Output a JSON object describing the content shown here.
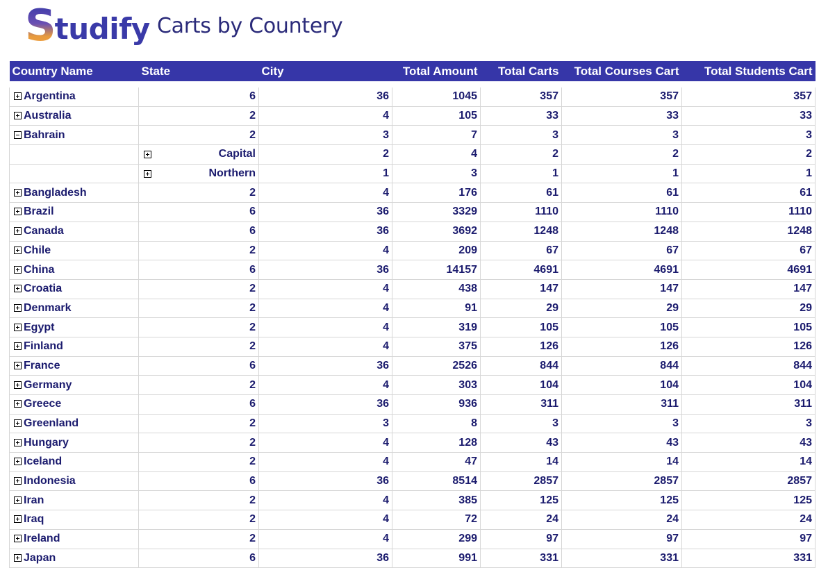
{
  "header": {
    "logo_initial": "S",
    "logo_rest": "tudify",
    "title": "Carts by Countery"
  },
  "columns": [
    "Country Name",
    "State",
    "City",
    "Total Amount",
    "Total Carts",
    "Total Courses Cart",
    "Total Students Cart"
  ],
  "rows": [
    {
      "type": "country",
      "expanded": false,
      "name": "Argentina",
      "state": "6",
      "city": "36",
      "amount": "1045",
      "carts": "357",
      "courses": "357",
      "students": "357"
    },
    {
      "type": "country",
      "expanded": false,
      "name": "Australia",
      "state": "2",
      "city": "4",
      "amount": "105",
      "carts": "33",
      "courses": "33",
      "students": "33"
    },
    {
      "type": "country",
      "expanded": true,
      "name": "Bahrain",
      "state": "2",
      "city": "3",
      "amount": "7",
      "carts": "3",
      "courses": "3",
      "students": "3"
    },
    {
      "type": "state",
      "expanded": false,
      "name": "",
      "state": "Capital",
      "city": "2",
      "amount": "4",
      "carts": "2",
      "courses": "2",
      "students": "2"
    },
    {
      "type": "state",
      "expanded": false,
      "name": "",
      "state": "Northern",
      "city": "1",
      "amount": "3",
      "carts": "1",
      "courses": "1",
      "students": "1"
    },
    {
      "type": "country",
      "expanded": false,
      "name": "Bangladesh",
      "state": "2",
      "city": "4",
      "amount": "176",
      "carts": "61",
      "courses": "61",
      "students": "61"
    },
    {
      "type": "country",
      "expanded": false,
      "name": "Brazil",
      "state": "6",
      "city": "36",
      "amount": "3329",
      "carts": "1110",
      "courses": "1110",
      "students": "1110"
    },
    {
      "type": "country",
      "expanded": false,
      "name": "Canada",
      "state": "6",
      "city": "36",
      "amount": "3692",
      "carts": "1248",
      "courses": "1248",
      "students": "1248"
    },
    {
      "type": "country",
      "expanded": false,
      "name": "Chile",
      "state": "2",
      "city": "4",
      "amount": "209",
      "carts": "67",
      "courses": "67",
      "students": "67"
    },
    {
      "type": "country",
      "expanded": false,
      "name": "China",
      "state": "6",
      "city": "36",
      "amount": "14157",
      "carts": "4691",
      "courses": "4691",
      "students": "4691"
    },
    {
      "type": "country",
      "expanded": false,
      "name": "Croatia",
      "state": "2",
      "city": "4",
      "amount": "438",
      "carts": "147",
      "courses": "147",
      "students": "147"
    },
    {
      "type": "country",
      "expanded": false,
      "name": "Denmark",
      "state": "2",
      "city": "4",
      "amount": "91",
      "carts": "29",
      "courses": "29",
      "students": "29"
    },
    {
      "type": "country",
      "expanded": false,
      "name": "Egypt",
      "state": "2",
      "city": "4",
      "amount": "319",
      "carts": "105",
      "courses": "105",
      "students": "105"
    },
    {
      "type": "country",
      "expanded": false,
      "name": "Finland",
      "state": "2",
      "city": "4",
      "amount": "375",
      "carts": "126",
      "courses": "126",
      "students": "126"
    },
    {
      "type": "country",
      "expanded": false,
      "name": "France",
      "state": "6",
      "city": "36",
      "amount": "2526",
      "carts": "844",
      "courses": "844",
      "students": "844"
    },
    {
      "type": "country",
      "expanded": false,
      "name": "Germany",
      "state": "2",
      "city": "4",
      "amount": "303",
      "carts": "104",
      "courses": "104",
      "students": "104"
    },
    {
      "type": "country",
      "expanded": false,
      "name": "Greece",
      "state": "6",
      "city": "36",
      "amount": "936",
      "carts": "311",
      "courses": "311",
      "students": "311"
    },
    {
      "type": "country",
      "expanded": false,
      "name": "Greenland",
      "state": "2",
      "city": "3",
      "amount": "8",
      "carts": "3",
      "courses": "3",
      "students": "3"
    },
    {
      "type": "country",
      "expanded": false,
      "name": "Hungary",
      "state": "2",
      "city": "4",
      "amount": "128",
      "carts": "43",
      "courses": "43",
      "students": "43"
    },
    {
      "type": "country",
      "expanded": false,
      "name": "Iceland",
      "state": "2",
      "city": "4",
      "amount": "47",
      "carts": "14",
      "courses": "14",
      "students": "14"
    },
    {
      "type": "country",
      "expanded": false,
      "name": "Indonesia",
      "state": "6",
      "city": "36",
      "amount": "8514",
      "carts": "2857",
      "courses": "2857",
      "students": "2857"
    },
    {
      "type": "country",
      "expanded": false,
      "name": "Iran",
      "state": "2",
      "city": "4",
      "amount": "385",
      "carts": "125",
      "courses": "125",
      "students": "125"
    },
    {
      "type": "country",
      "expanded": false,
      "name": "Iraq",
      "state": "2",
      "city": "4",
      "amount": "72",
      "carts": "24",
      "courses": "24",
      "students": "24"
    },
    {
      "type": "country",
      "expanded": false,
      "name": "Ireland",
      "state": "2",
      "city": "4",
      "amount": "299",
      "carts": "97",
      "courses": "97",
      "students": "97"
    },
    {
      "type": "country",
      "expanded": false,
      "name": "Japan",
      "state": "6",
      "city": "36",
      "amount": "991",
      "carts": "331",
      "courses": "331",
      "students": "331"
    }
  ]
}
